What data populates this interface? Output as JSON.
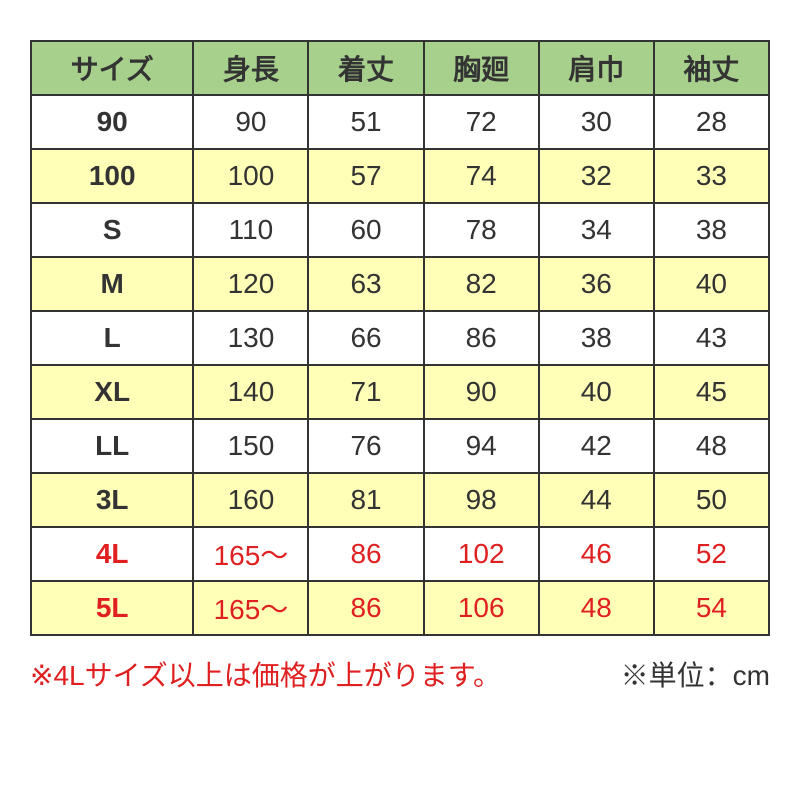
{
  "table": {
    "type": "table",
    "header_bg": "#a8d08d",
    "row_alt_bg": "#ffffb8",
    "row_bg": "#ffffff",
    "border_color": "#333333",
    "text_color": "#333333",
    "highlight_text_color": "#e02020",
    "font_size": 28,
    "columns": [
      "サイズ",
      "身長",
      "着丈",
      "胸廻",
      "肩巾",
      "袖丈"
    ],
    "col_widths_pct": [
      22,
      15.6,
      15.6,
      15.6,
      15.6,
      15.6
    ],
    "rows": [
      {
        "alt": false,
        "red": false,
        "cells": [
          "90",
          "90",
          "51",
          "72",
          "30",
          "28"
        ]
      },
      {
        "alt": true,
        "red": false,
        "cells": [
          "100",
          "100",
          "57",
          "74",
          "32",
          "33"
        ]
      },
      {
        "alt": false,
        "red": false,
        "cells": [
          "S",
          "110",
          "60",
          "78",
          "34",
          "38"
        ]
      },
      {
        "alt": true,
        "red": false,
        "cells": [
          "M",
          "120",
          "63",
          "82",
          "36",
          "40"
        ]
      },
      {
        "alt": false,
        "red": false,
        "cells": [
          "L",
          "130",
          "66",
          "86",
          "38",
          "43"
        ]
      },
      {
        "alt": true,
        "red": false,
        "cells": [
          "XL",
          "140",
          "71",
          "90",
          "40",
          "45"
        ]
      },
      {
        "alt": false,
        "red": false,
        "cells": [
          "LL",
          "150",
          "76",
          "94",
          "42",
          "48"
        ]
      },
      {
        "alt": true,
        "red": false,
        "cells": [
          "3L",
          "160",
          "81",
          "98",
          "44",
          "50"
        ]
      },
      {
        "alt": false,
        "red": true,
        "cells": [
          "4L",
          "165～",
          "86",
          "102",
          "46",
          "52"
        ]
      },
      {
        "alt": true,
        "red": true,
        "cells": [
          "5L",
          "165～",
          "86",
          "106",
          "48",
          "54"
        ]
      }
    ]
  },
  "footer": {
    "note_left": "※4Lサイズ以上は価格が上がります。",
    "note_right": "※単位：cm"
  }
}
